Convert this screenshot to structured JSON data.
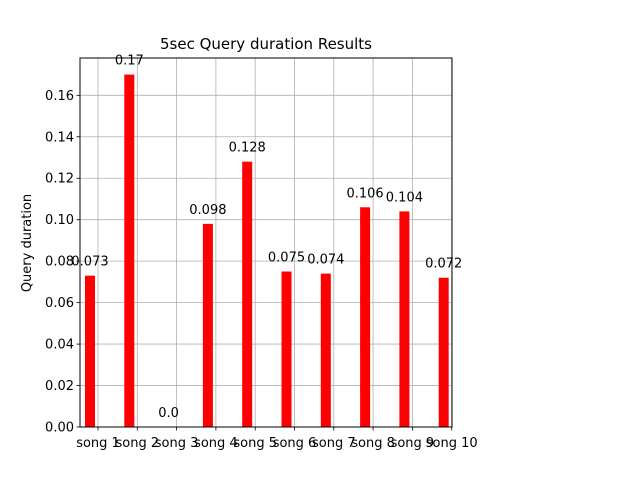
{
  "chart_data": {
    "type": "bar",
    "title": "5sec Query duration Results",
    "xlabel": "",
    "ylabel": "Query duration",
    "categories": [
      "song 1",
      "song 2",
      "song 3",
      "song 4",
      "song 5",
      "song 6",
      "song 7",
      "song 8",
      "song 9",
      "song 10"
    ],
    "values": [
      0.073,
      0.17,
      0.0,
      0.098,
      0.128,
      0.075,
      0.074,
      0.106,
      0.104,
      0.072
    ],
    "value_labels": [
      "0.073",
      "0.17",
      "0.0",
      "0.098",
      "0.128",
      "0.075",
      "0.074",
      "0.106",
      "0.104",
      "0.072"
    ],
    "ylim": [
      0,
      0.178
    ],
    "yticks": [
      0.0,
      0.02,
      0.04,
      0.06,
      0.08,
      0.1,
      0.12,
      0.14,
      0.16
    ],
    "ytick_labels": [
      "0.00",
      "0.02",
      "0.04",
      "0.06",
      "0.08",
      "0.10",
      "0.12",
      "0.14",
      "0.16"
    ],
    "grid": true,
    "legend": "none",
    "bar_color": "#ff0000"
  }
}
